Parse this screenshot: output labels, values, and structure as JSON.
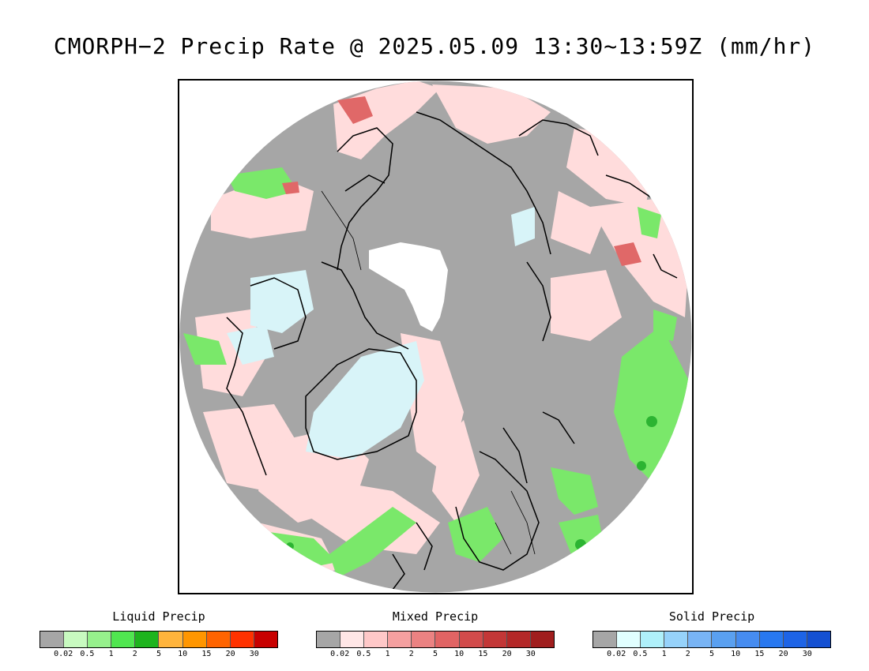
{
  "title": "CMORPH−2 Precip Rate @ 2025.05.09 13:30~13:59Z (mm/hr)",
  "map": {
    "colors": {
      "no_precip": "#a6a6a6",
      "mixed_light": "#ffdcdc",
      "solid_light": "#d8f4f8",
      "liquid_light": "#b4f4a6",
      "liquid_mid": "#7ae86a",
      "liquid_dark": "#2cb432",
      "mixed_heavy": "#e06868",
      "ice_cap": "#ffffff",
      "coastline": "#000000"
    }
  },
  "legends": [
    {
      "title": "Liquid Precip",
      "colors": [
        "#a6a6a6",
        "#c8fac0",
        "#96f08c",
        "#50e650",
        "#1eb41e",
        "#ffb43c",
        "#ff9600",
        "#ff6400",
        "#ff3200",
        "#c80000"
      ],
      "ticks": [
        "0.02",
        "0.5",
        "1",
        "2",
        "5",
        "10",
        "15",
        "20",
        "30"
      ]
    },
    {
      "title": "Mixed Precip",
      "colors": [
        "#a6a6a6",
        "#ffe6e6",
        "#ffc8c8",
        "#f5a0a0",
        "#eb8282",
        "#e16464",
        "#d24b4b",
        "#c33737",
        "#b42828",
        "#a01e1e"
      ],
      "ticks": [
        "0.02",
        "0.5",
        "1",
        "2",
        "5",
        "10",
        "15",
        "20",
        "30"
      ]
    },
    {
      "title": "Solid Precip",
      "colors": [
        "#a6a6a6",
        "#e1ffff",
        "#aff0fa",
        "#96d2fa",
        "#78b4f5",
        "#5aa0f0",
        "#468cf0",
        "#2878f0",
        "#1e64e6",
        "#1450d2"
      ],
      "ticks": [
        "0.02",
        "0.5",
        "1",
        "2",
        "5",
        "10",
        "15",
        "20",
        "30"
      ]
    }
  ]
}
